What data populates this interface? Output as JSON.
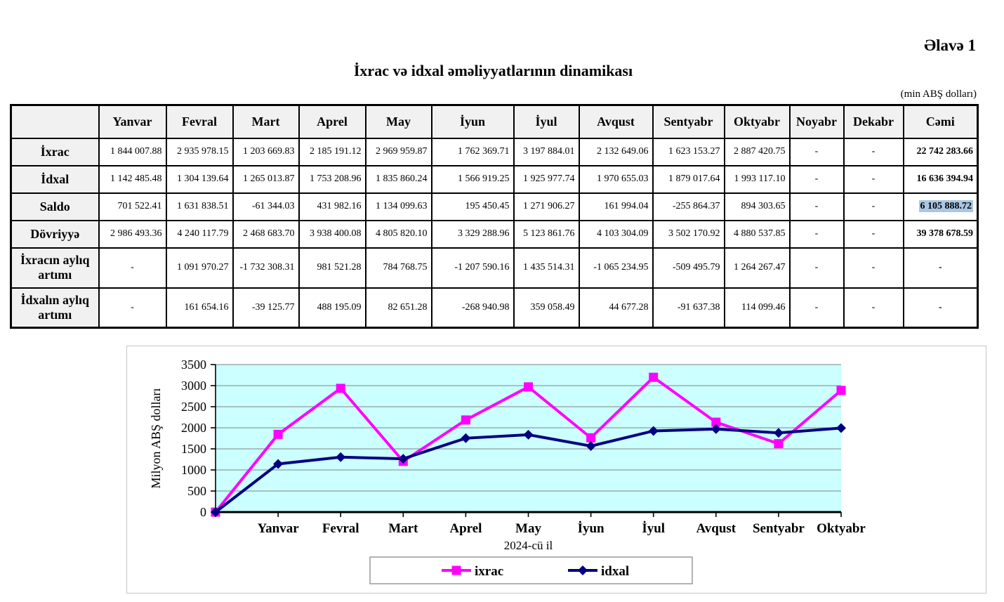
{
  "page": {
    "annex_label": "Əlavə 1",
    "title": "İxrac və idxal əməliyyatlarının dinamikası",
    "unit_note": "(min ABŞ dolları)"
  },
  "colors": {
    "ixrac_line": "#ff00ff",
    "idxal_line": "#000080",
    "plot_background": "#ccffff",
    "gridline": "#919c9c",
    "table_header_bg": "#f1f1f1",
    "saldo_total_highlight": "#a9c7e4",
    "chart_border": "#c6c6c6"
  },
  "table": {
    "columns": [
      "",
      "Yanvar",
      "Fevral",
      "Mart",
      "Aprel",
      "May",
      "İyun",
      "İyul",
      "Avqust",
      "Sentyabr",
      "Oktyabr",
      "Noyabr",
      "Dekabr",
      "Cəmi"
    ],
    "rows": [
      {
        "label": "İxrac",
        "values": [
          "1 844 007.88",
          "2 935 978.15",
          "1 203 669.83",
          "2 185 191.12",
          "2 969 959.87",
          "1 762 369.71",
          "3 197 884.01",
          "2 132 649.06",
          "1 623 153.27",
          "2 887 420.75",
          "-",
          "-",
          "22 742 283.66"
        ],
        "tall": false,
        "highlight_total": false
      },
      {
        "label": "İdxal",
        "values": [
          "1 142 485.48",
          "1 304 139.64",
          "1 265 013.87",
          "1 753 208.96",
          "1 835 860.24",
          "1 566 919.25",
          "1 925 977.74",
          "1 970 655.03",
          "1 879 017.64",
          "1 993 117.10",
          "-",
          "-",
          "16 636 394.94"
        ],
        "tall": false,
        "highlight_total": false
      },
      {
        "label": "Saldo",
        "values": [
          "701 522.41",
          "1 631 838.51",
          "-61 344.03",
          "431 982.16",
          "1 134 099.63",
          "195 450.45",
          "1 271 906.27",
          "161 994.04",
          "-255 864.37",
          "894 303.65",
          "-",
          "-",
          "6 105 888.72"
        ],
        "tall": false,
        "highlight_total": true
      },
      {
        "label": "Dövriyyə",
        "values": [
          "2 986 493.36",
          "4 240 117.79",
          "2 468 683.70",
          "3 938 400.08",
          "4 805 820.10",
          "3 329 288.96",
          "5 123 861.76",
          "4 103 304.09",
          "3 502 170.92",
          "4 880 537.85",
          "-",
          "-",
          "39 378 678.59"
        ],
        "tall": false,
        "highlight_total": false
      },
      {
        "label": "İxracın aylıq artımı",
        "values": [
          "-",
          "1 091 970.27",
          "-1 732 308.31",
          "981 521.28",
          "784 768.75",
          "-1 207 590.16",
          "1 435 514.31",
          "-1 065 234.95",
          "-509 495.79",
          "1 264 267.47",
          "-",
          "-",
          "-"
        ],
        "tall": true,
        "highlight_total": false
      },
      {
        "label": "İdxalın aylıq artımı",
        "values": [
          "-",
          "161 654.16",
          "-39 125.77",
          "488 195.09",
          "82 651.28",
          "-268 940.98",
          "359 058.49",
          "44 677.28",
          "-91 637.38",
          "114 099.46",
          "-",
          "-",
          "-"
        ],
        "tall": true,
        "highlight_total": false
      }
    ]
  },
  "chart_data": {
    "type": "line",
    "x": [
      "",
      "Yanvar",
      "Fevral",
      "Mart",
      "Aprel",
      "May",
      "İyun",
      "İyul",
      "Avqust",
      "Sentyabr",
      "Oktyabr"
    ],
    "series": [
      {
        "name": "ixrac",
        "color": "#ff00ff",
        "marker": "square",
        "values": [
          0,
          1844.01,
          2935.98,
          1203.67,
          2185.19,
          2969.96,
          1762.37,
          3197.88,
          2132.65,
          1623.15,
          2887.42
        ]
      },
      {
        "name": "idxal",
        "color": "#000080",
        "marker": "diamond",
        "values": [
          0,
          1142.49,
          1304.14,
          1265.01,
          1753.21,
          1835.86,
          1566.92,
          1925.98,
          1970.66,
          1879.02,
          1993.12
        ]
      }
    ],
    "ylabel": "Milyon ABŞ dolları",
    "xlabel": "2024-cü il",
    "ylim": [
      0,
      3500
    ],
    "ytick_step": 500,
    "grid": true,
    "plot_bg": "#ccffff",
    "legend_position": "bottom"
  }
}
